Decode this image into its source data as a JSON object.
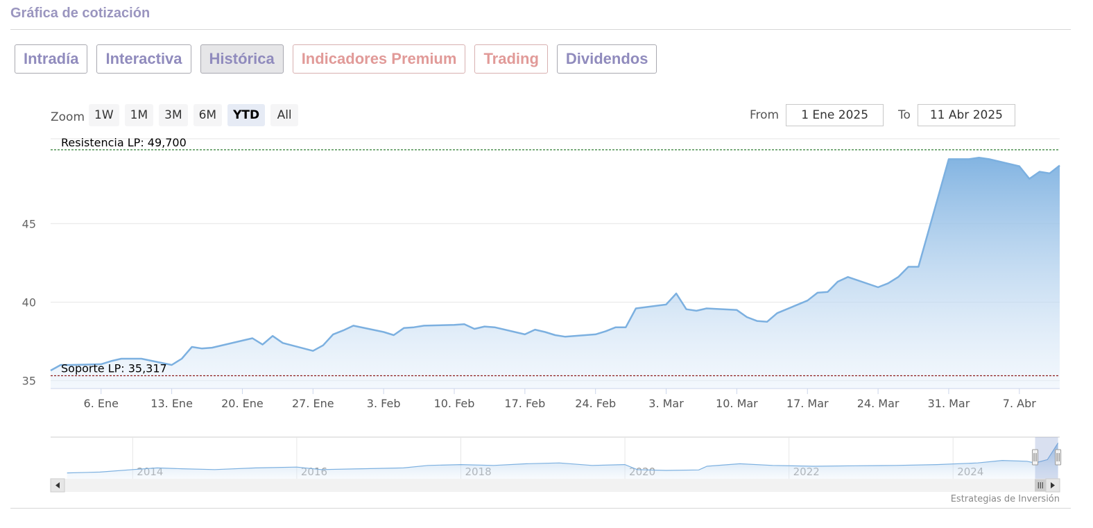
{
  "header": {
    "title": "Gráfica de cotización"
  },
  "tabs": [
    {
      "label": "Intradía",
      "active": false,
      "premium": false
    },
    {
      "label": "Interactiva",
      "active": false,
      "premium": false
    },
    {
      "label": "Histórica",
      "active": true,
      "premium": false
    },
    {
      "label": "Indicadores Premium",
      "active": false,
      "premium": true
    },
    {
      "label": "Trading",
      "active": false,
      "premium": true
    },
    {
      "label": "Dividendos",
      "active": false,
      "premium": false
    }
  ],
  "zoom": {
    "label": "Zoom",
    "buttons": [
      "1W",
      "1M",
      "3M",
      "6M",
      "YTD",
      "All"
    ],
    "selected": "YTD"
  },
  "range": {
    "from_label": "From",
    "from_value": "1 Ene 2025",
    "to_label": "To",
    "to_value": "11 Abr 2025"
  },
  "credit": "Estrategias de Inversión",
  "colors": {
    "line": "#7cb0e0",
    "resistance": "#2e7d32",
    "support": "#8b1a1a",
    "accent": "#9a95bf",
    "premium": "#e19a98"
  },
  "chart_data": {
    "type": "area",
    "x_ticks": [
      "6. Ene",
      "13. Ene",
      "20. Ene",
      "27. Ene",
      "3. Feb",
      "10. Feb",
      "17. Feb",
      "24. Feb",
      "3. Mar",
      "10. Mar",
      "17. Mar",
      "24. Mar",
      "31. Mar",
      "7. Abr"
    ],
    "y_ticks": [
      35,
      40,
      45
    ],
    "ylim": [
      34.5,
      50.4
    ],
    "xlim": [
      "2025-01-01",
      "2025-04-11"
    ],
    "series": [
      {
        "points": [
          [
            "2025-01-01",
            35.65
          ],
          [
            "2025-01-02",
            36.0
          ],
          [
            "2025-01-03",
            36.0
          ],
          [
            "2025-01-06",
            36.05
          ],
          [
            "2025-01-07",
            36.25
          ],
          [
            "2025-01-08",
            36.4
          ],
          [
            "2025-01-09",
            36.4
          ],
          [
            "2025-01-10",
            36.4
          ],
          [
            "2025-01-13",
            36.0
          ],
          [
            "2025-01-14",
            36.4
          ],
          [
            "2025-01-15",
            37.15
          ],
          [
            "2025-01-16",
            37.05
          ],
          [
            "2025-01-17",
            37.1
          ],
          [
            "2025-01-20",
            37.55
          ],
          [
            "2025-01-21",
            37.7
          ],
          [
            "2025-01-22",
            37.3
          ],
          [
            "2025-01-23",
            37.85
          ],
          [
            "2025-01-24",
            37.4
          ],
          [
            "2025-01-27",
            36.9
          ],
          [
            "2025-01-28",
            37.25
          ],
          [
            "2025-01-29",
            37.95
          ],
          [
            "2025-01-30",
            38.2
          ],
          [
            "2025-01-31",
            38.5
          ],
          [
            "2025-02-03",
            38.1
          ],
          [
            "2025-02-04",
            37.9
          ],
          [
            "2025-02-05",
            38.35
          ],
          [
            "2025-02-06",
            38.4
          ],
          [
            "2025-02-07",
            38.5
          ],
          [
            "2025-02-10",
            38.55
          ],
          [
            "2025-02-11",
            38.6
          ],
          [
            "2025-02-12",
            38.3
          ],
          [
            "2025-02-13",
            38.45
          ],
          [
            "2025-02-14",
            38.4
          ],
          [
            "2025-02-17",
            37.95
          ],
          [
            "2025-02-18",
            38.25
          ],
          [
            "2025-02-19",
            38.1
          ],
          [
            "2025-02-20",
            37.9
          ],
          [
            "2025-02-21",
            37.8
          ],
          [
            "2025-02-24",
            37.95
          ],
          [
            "2025-02-25",
            38.15
          ],
          [
            "2025-02-26",
            38.4
          ],
          [
            "2025-02-27",
            38.4
          ],
          [
            "2025-02-28",
            39.6
          ],
          [
            "2025-03-03",
            39.85
          ],
          [
            "2025-03-04",
            40.55
          ],
          [
            "2025-03-05",
            39.55
          ],
          [
            "2025-03-06",
            39.45
          ],
          [
            "2025-03-07",
            39.6
          ],
          [
            "2025-03-10",
            39.5
          ],
          [
            "2025-03-11",
            39.05
          ],
          [
            "2025-03-12",
            38.8
          ],
          [
            "2025-03-13",
            38.75
          ],
          [
            "2025-03-14",
            39.3
          ],
          [
            "2025-03-17",
            40.1
          ],
          [
            "2025-03-18",
            40.6
          ],
          [
            "2025-03-19",
            40.65
          ],
          [
            "2025-03-20",
            41.3
          ],
          [
            "2025-03-21",
            41.6
          ],
          [
            "2025-03-24",
            40.95
          ],
          [
            "2025-03-25",
            41.2
          ],
          [
            "2025-03-26",
            41.6
          ],
          [
            "2025-03-27",
            42.25
          ],
          [
            "2025-03-28",
            42.25
          ],
          [
            "2025-03-31",
            49.1
          ],
          [
            "2025-04-01",
            49.1
          ],
          [
            "2025-04-02",
            49.1
          ],
          [
            "2025-04-03",
            49.2
          ],
          [
            "2025-04-04",
            49.1
          ],
          [
            "2025-04-07",
            48.65
          ],
          [
            "2025-04-08",
            47.85
          ],
          [
            "2025-04-09",
            48.3
          ],
          [
            "2025-04-10",
            48.2
          ],
          [
            "2025-04-11",
            48.7
          ]
        ]
      }
    ],
    "annotations": [
      {
        "label": "Resistencia LP: 49,700",
        "value": 49.7,
        "style": "dashed",
        "color": "#2e7d32"
      },
      {
        "label": "Soporte LP: 35,317",
        "value": 35.317,
        "style": "dashed",
        "color": "#8b1a1a"
      }
    ],
    "navigator": {
      "x_ticks": [
        "2014",
        "2016",
        "2018",
        "2020",
        "2022",
        "2024"
      ],
      "xlim": [
        2013.0,
        2025.3
      ],
      "series": [
        [
          2013.2,
          31
        ],
        [
          2013.6,
          31.5
        ],
        [
          2014.0,
          33
        ],
        [
          2014.3,
          34
        ],
        [
          2014.6,
          33.5
        ],
        [
          2015.0,
          33
        ],
        [
          2015.5,
          34
        ],
        [
          2016.0,
          34.5
        ],
        [
          2016.3,
          33
        ],
        [
          2016.8,
          33.5
        ],
        [
          2017.3,
          34
        ],
        [
          2017.6,
          35.5
        ],
        [
          2018.0,
          36
        ],
        [
          2018.4,
          35.5
        ],
        [
          2018.8,
          36.5
        ],
        [
          2019.2,
          37
        ],
        [
          2019.6,
          35.5
        ],
        [
          2020.0,
          36
        ],
        [
          2020.15,
          33
        ],
        [
          2020.5,
          32.5
        ],
        [
          2020.9,
          32.8
        ],
        [
          2021.0,
          35
        ],
        [
          2021.4,
          36.5
        ],
        [
          2021.8,
          35.5
        ],
        [
          2022.3,
          35
        ],
        [
          2022.8,
          35.3
        ],
        [
          2023.3,
          35.5
        ],
        [
          2023.8,
          36
        ],
        [
          2024.3,
          37
        ],
        [
          2024.6,
          38.5
        ],
        [
          2024.9,
          38
        ],
        [
          2025.0,
          37
        ],
        [
          2025.15,
          39
        ],
        [
          2025.28,
          49
        ]
      ]
    }
  }
}
